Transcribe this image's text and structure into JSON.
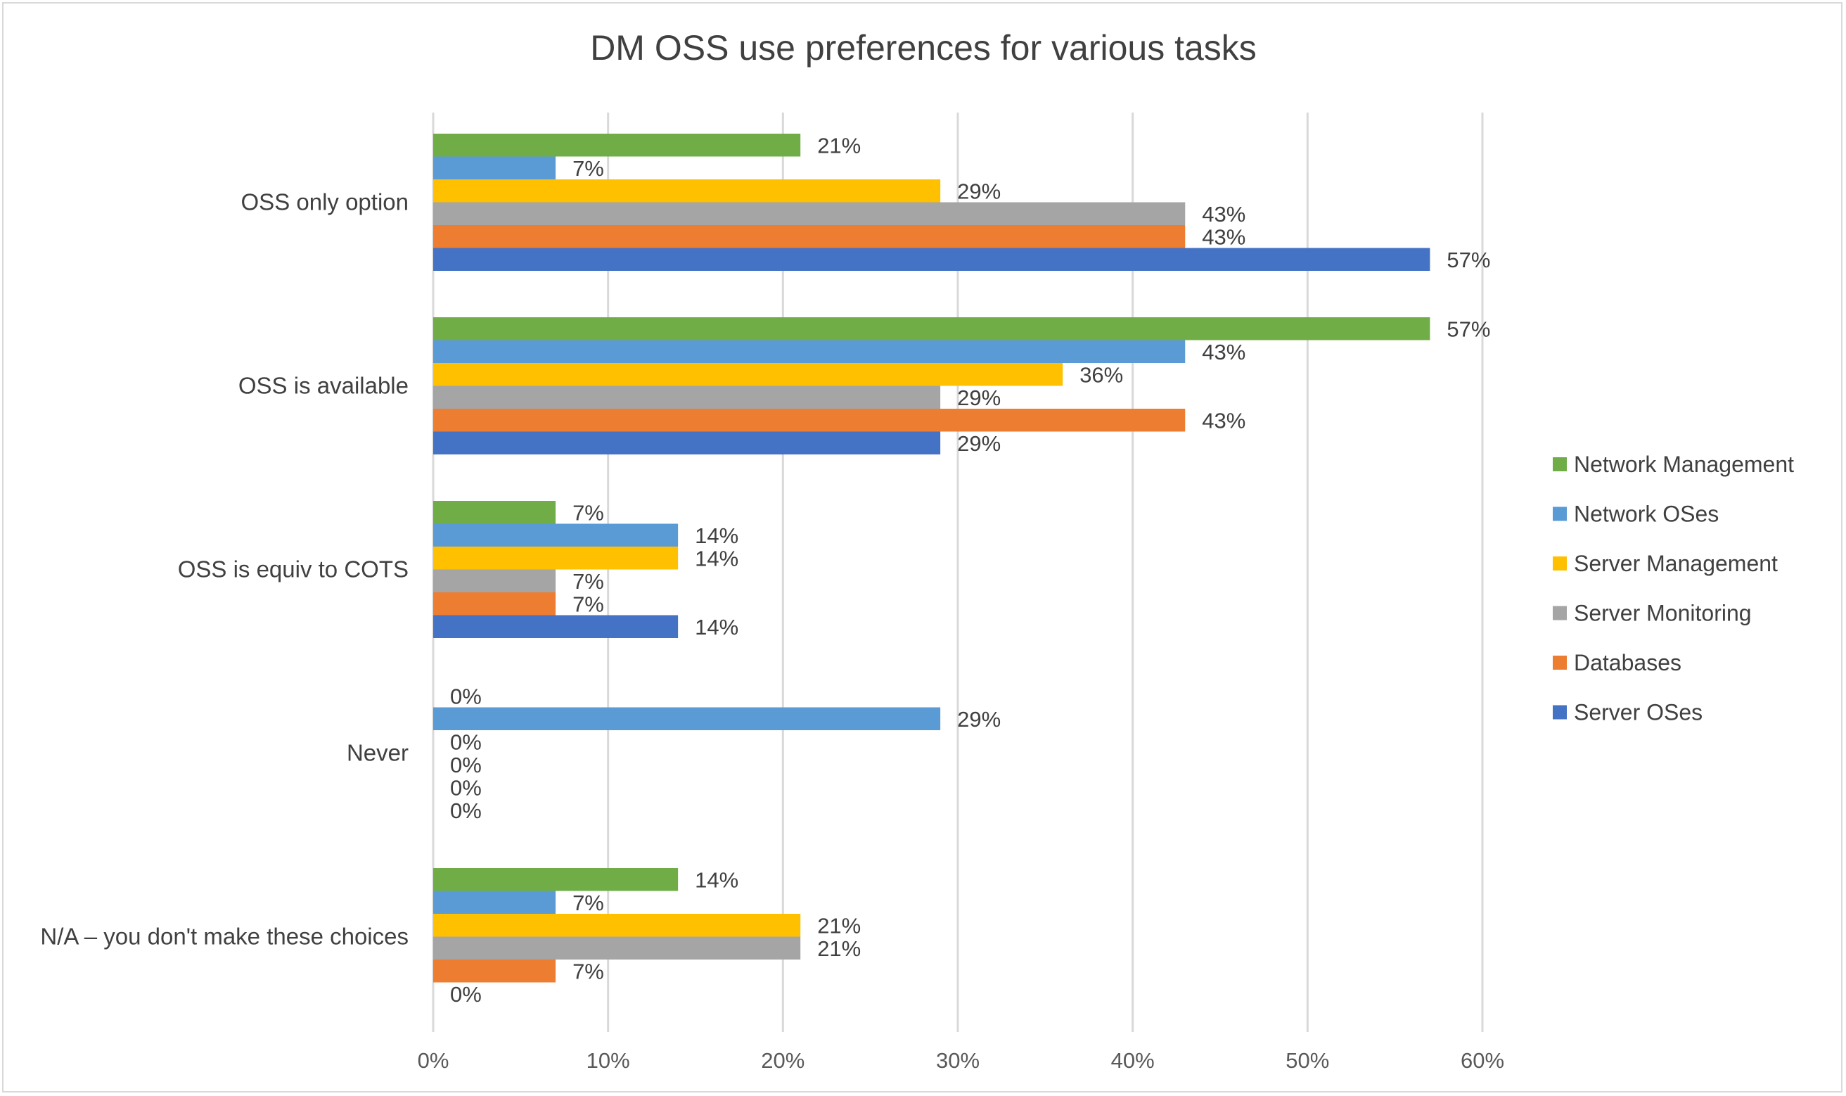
{
  "chart_data": {
    "type": "bar",
    "orientation": "horizontal",
    "title": "DM OSS use preferences for various tasks",
    "xlabel": "",
    "ylabel": "",
    "xlim": [
      0,
      60
    ],
    "x_ticks": [
      "0%",
      "10%",
      "20%",
      "30%",
      "40%",
      "50%",
      "60%"
    ],
    "categories": [
      "OSS only option",
      "OSS is available",
      "OSS is equiv to COTS",
      "Never",
      "N/A – you don't make these choices"
    ],
    "series": [
      {
        "name": "Network Management",
        "color": "#70ad47",
        "values": [
          21,
          57,
          7,
          0,
          14
        ],
        "labels": [
          "21%",
          "57%",
          "7%",
          "0%",
          "14%"
        ]
      },
      {
        "name": "Network OSes",
        "color": "#5b9bd5",
        "values": [
          7,
          43,
          14,
          29,
          7
        ],
        "labels": [
          "7%",
          "43%",
          "14%",
          "29%",
          "7%"
        ]
      },
      {
        "name": "Server Management",
        "color": "#ffc000",
        "values": [
          29,
          36,
          14,
          0,
          21
        ],
        "labels": [
          "29%",
          "36%",
          "14%",
          "0%",
          "21%"
        ]
      },
      {
        "name": "Server Monitoring",
        "color": "#a5a5a5",
        "values": [
          43,
          29,
          7,
          0,
          21
        ],
        "labels": [
          "43%",
          "29%",
          "7%",
          "0%",
          "21%"
        ]
      },
      {
        "name": "Databases",
        "color": "#ed7d31",
        "values": [
          43,
          43,
          7,
          0,
          7
        ],
        "labels": [
          "43%",
          "43%",
          "7%",
          "0%",
          "7%"
        ]
      },
      {
        "name": "Server OSes",
        "color": "#4472c4",
        "values": [
          57,
          29,
          14,
          0,
          0
        ],
        "labels": [
          "57%",
          "29%",
          "14%",
          "0%",
          "0%"
        ]
      }
    ],
    "grid": true,
    "legend_position": "right"
  }
}
